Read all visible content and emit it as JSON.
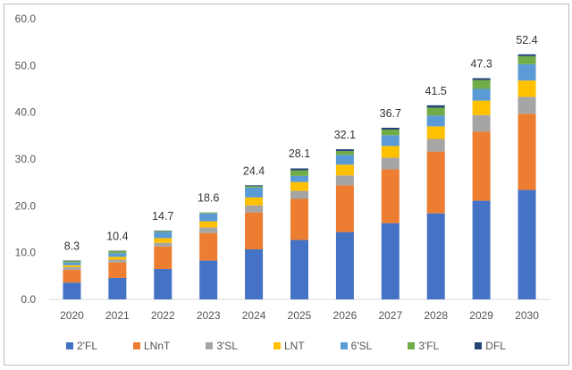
{
  "chart_data": {
    "type": "bar",
    "stacked": true,
    "title": "",
    "xlabel": "",
    "ylabel": "",
    "ylim": [
      0,
      60
    ],
    "yticks": [
      "0.0",
      "10.0",
      "20.0",
      "30.0",
      "40.0",
      "50.0",
      "60.0"
    ],
    "grid": false,
    "legend_position": "bottom",
    "categories": [
      "2020",
      "2021",
      "2022",
      "2023",
      "2024",
      "2025",
      "2026",
      "2027",
      "2028",
      "2029",
      "2030"
    ],
    "totals": [
      "8.3",
      "10.4",
      "14.7",
      "18.6",
      "24.4",
      "28.1",
      "32.1",
      "36.7",
      "41.5",
      "47.3",
      "52.4"
    ],
    "series": [
      {
        "name": "2'FL",
        "color": "#4472c4",
        "values": [
          3.6,
          4.6,
          6.5,
          8.3,
          10.7,
          12.7,
          14.4,
          16.3,
          18.4,
          21.1,
          23.4
        ]
      },
      {
        "name": "LNnT",
        "color": "#ed7d31",
        "values": [
          2.7,
          3.3,
          4.8,
          5.9,
          7.9,
          8.8,
          10.0,
          11.5,
          13.2,
          14.8,
          16.3
        ]
      },
      {
        "name": "3'SL",
        "color": "#a5a5a5",
        "values": [
          0.6,
          0.6,
          0.8,
          1.2,
          1.5,
          1.7,
          2.1,
          2.5,
          2.7,
          3.5,
          3.6
        ]
      },
      {
        "name": "LNT",
        "color": "#ffc000",
        "values": [
          0.4,
          0.6,
          1.0,
          1.3,
          1.7,
          1.9,
          2.3,
          2.5,
          2.7,
          3.1,
          3.5
        ]
      },
      {
        "name": "6'SL",
        "color": "#5b9bd5",
        "values": [
          0.6,
          0.8,
          1.3,
          1.7,
          2.1,
          1.3,
          2.1,
          2.3,
          2.3,
          2.5,
          3.5
        ]
      },
      {
        "name": "3'FL",
        "color": "#70ad47",
        "values": [
          0.3,
          0.4,
          0.2,
          0.2,
          0.3,
          1.2,
          0.8,
          1.2,
          1.7,
          1.9,
          1.7
        ]
      },
      {
        "name": "DFL",
        "color": "#264478",
        "values": [
          0.1,
          0.1,
          0.1,
          0.0,
          0.2,
          0.4,
          0.4,
          0.4,
          0.5,
          0.4,
          0.4
        ]
      }
    ]
  }
}
